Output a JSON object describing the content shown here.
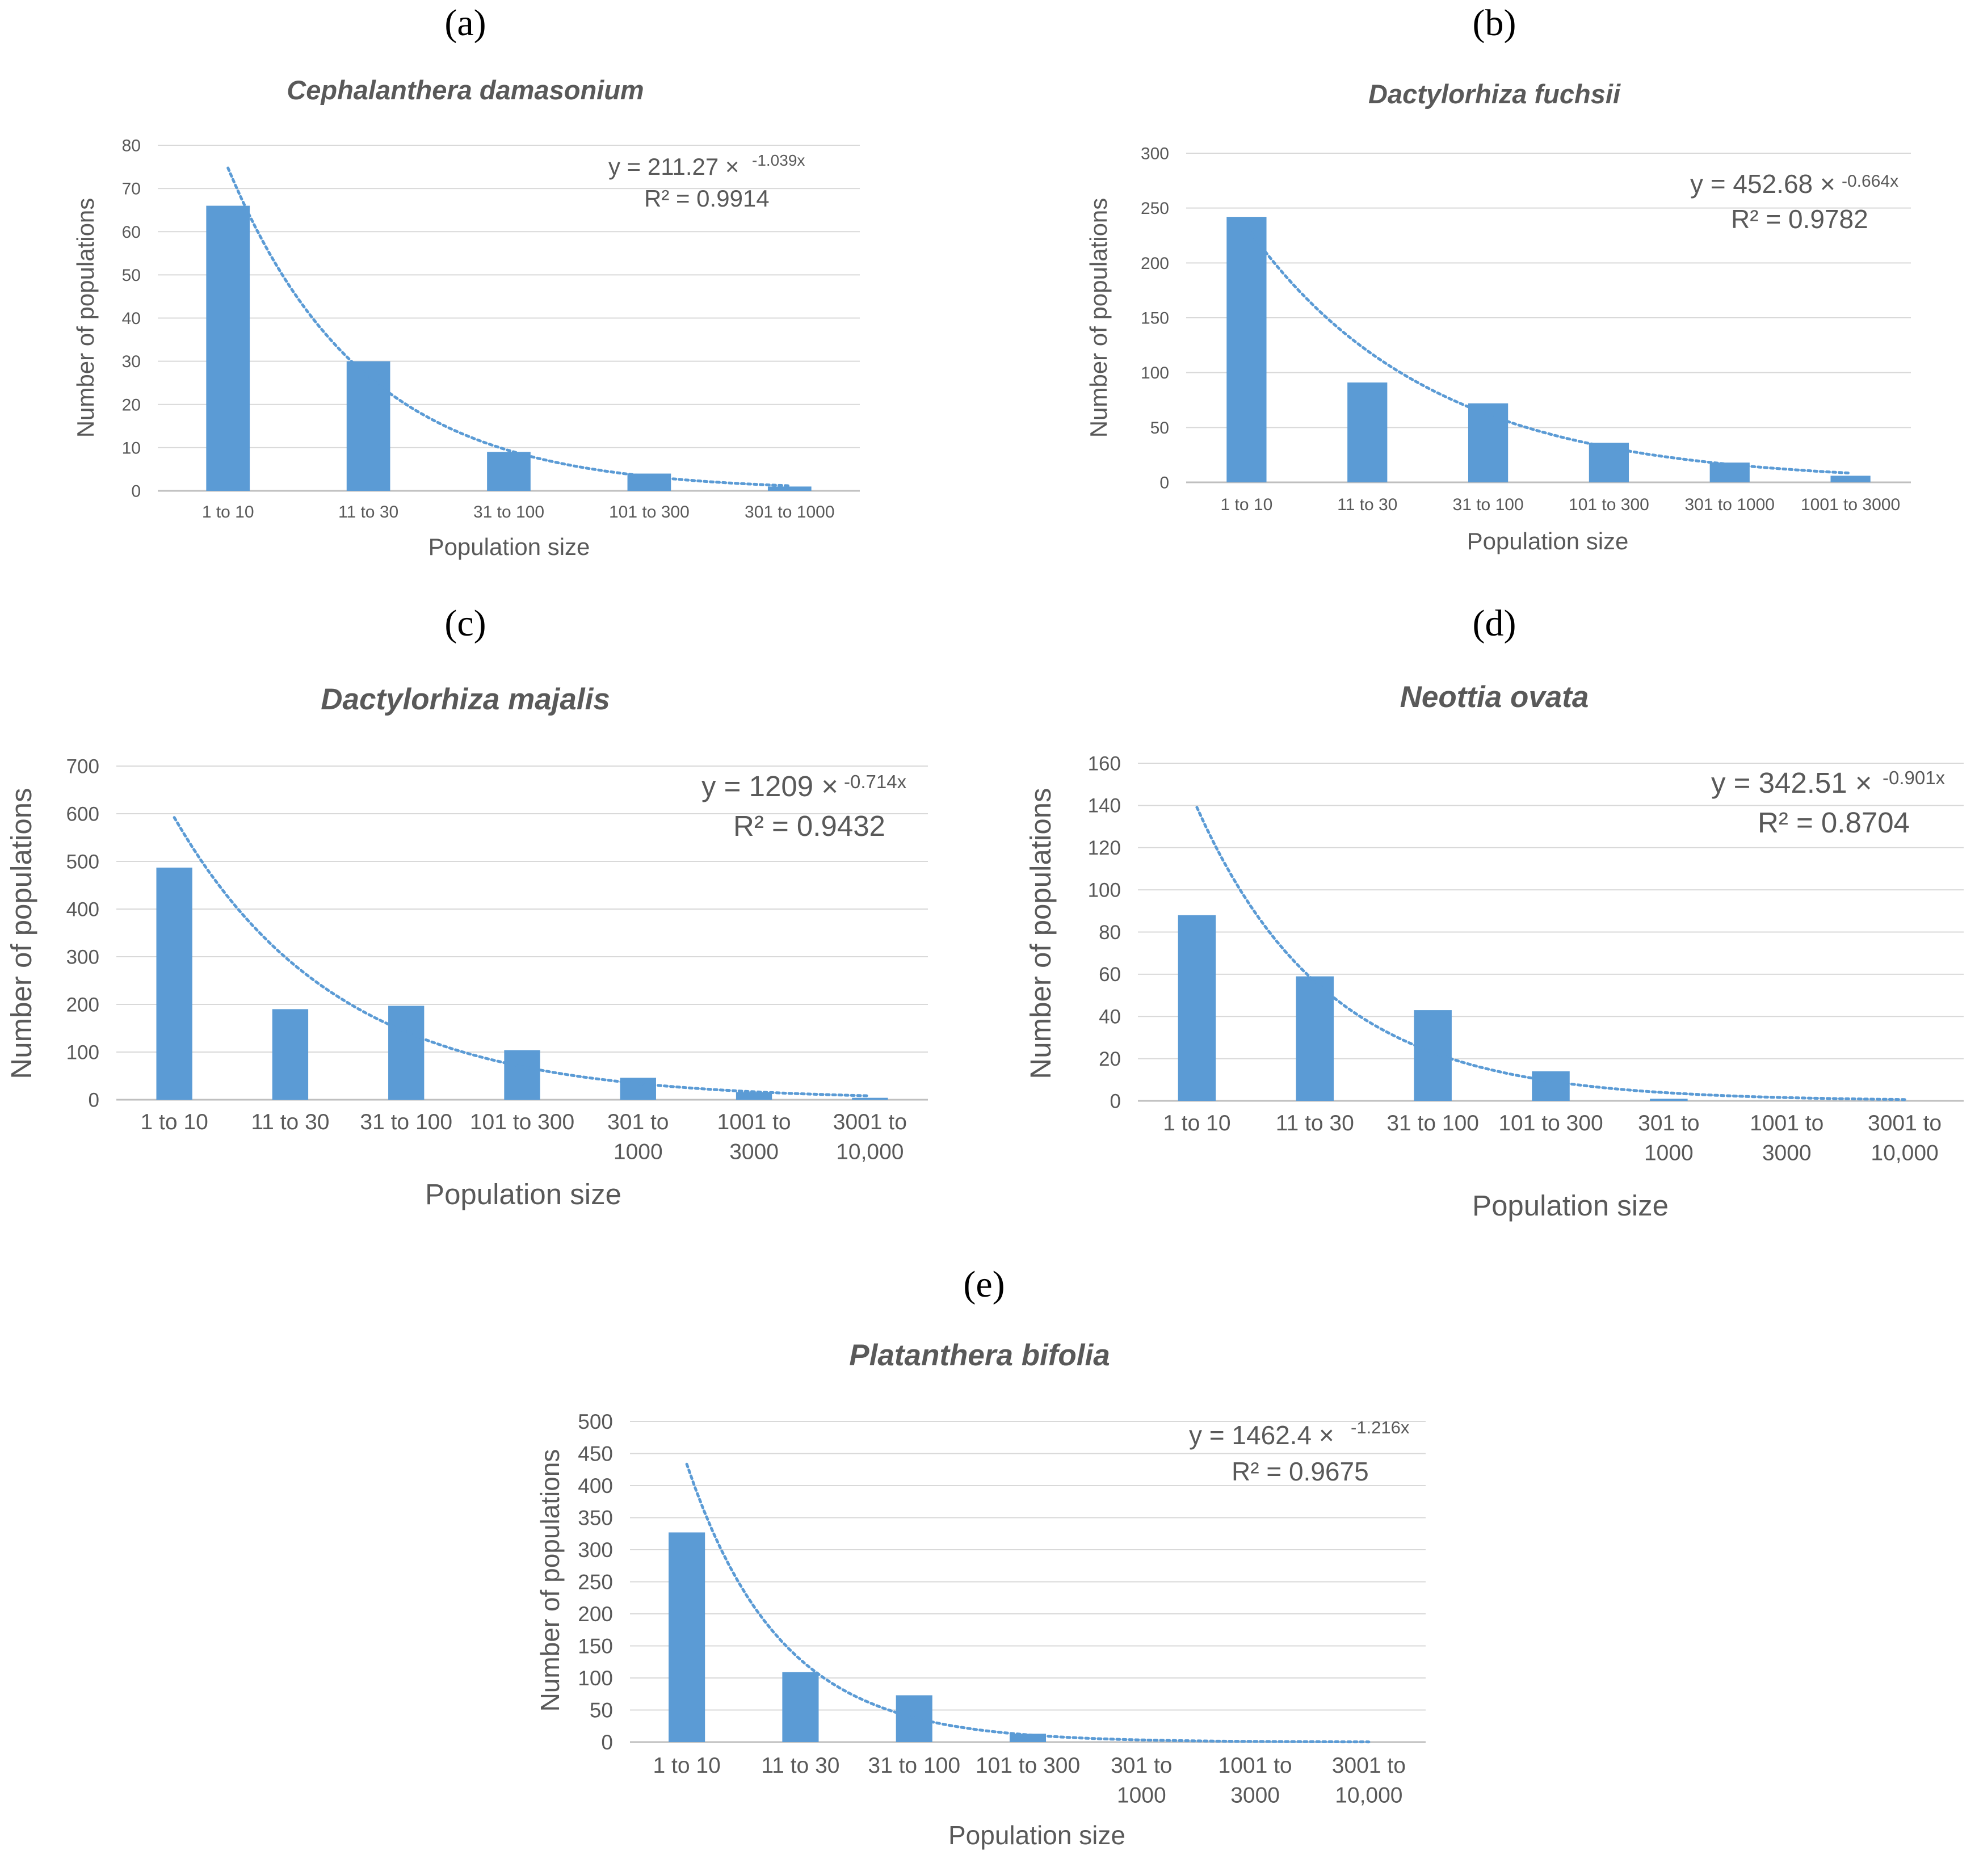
{
  "chart_data": [
    {
      "type": "bar",
      "panel": "(a)",
      "title": "Cephalanthera damasonium",
      "xlabel": "Population size",
      "ylabel": "Number of populations",
      "categories": [
        "1 to 10",
        "11 to 30",
        "31 to 100",
        "101 to 300",
        "301 to 1000"
      ],
      "values": [
        66,
        30,
        9,
        4,
        1
      ],
      "ylim": [
        0,
        80
      ],
      "yticks": [
        "0",
        "10",
        "20",
        "30",
        "40",
        "50",
        "60",
        "70",
        "80"
      ],
      "grid": true,
      "bar_color": "#5B9BD5",
      "trendline": {
        "type": "exponential",
        "a": 211.27,
        "b": -1.039
      },
      "equation": {
        "lhs": "y = 211.27 ×",
        "exponent": "-1.039x",
        "r2": "R² = 0.9914"
      }
    },
    {
      "type": "bar",
      "panel": "(b)",
      "title": "Dactylorhiza fuchsii",
      "xlabel": "Population size",
      "ylabel": "Number of populations",
      "categories": [
        "1 to 10",
        "11 to 30",
        "31 to 100",
        "101 to 300",
        "301 to 1000",
        "1001 to 3000"
      ],
      "values": [
        242,
        91,
        72,
        36,
        18,
        6
      ],
      "ylim": [
        0,
        300
      ],
      "yticks": [
        "0",
        "50",
        "100",
        "150",
        "200",
        "250",
        "300"
      ],
      "grid": true,
      "bar_color": "#5B9BD5",
      "trendline": {
        "type": "exponential",
        "a": 452.68,
        "b": -0.664
      },
      "equation": {
        "lhs": "y = 452.68 ×",
        "exponent": "-0.664x",
        "r2": "R² = 0.9782"
      }
    },
    {
      "type": "bar",
      "panel": "(c)",
      "title": "Dactylorhiza majalis",
      "xlabel": "Population size",
      "ylabel": "Number of populations",
      "categories": [
        [
          "1 to 10"
        ],
        [
          "11 to 30"
        ],
        [
          "31 to 100"
        ],
        [
          "101 to 300"
        ],
        [
          "301 to",
          "1000"
        ],
        [
          "1001 to",
          "3000"
        ],
        [
          "3001 to",
          "10,000"
        ]
      ],
      "values": [
        487,
        190,
        197,
        104,
        46,
        16,
        4
      ],
      "ylim": [
        0,
        700
      ],
      "yticks": [
        "0",
        "100",
        "200",
        "300",
        "400",
        "500",
        "600",
        "700"
      ],
      "grid": true,
      "bar_color": "#5B9BD5",
      "trendline": {
        "type": "exponential",
        "a": 1209,
        "b": -0.714
      },
      "equation": {
        "lhs": "y = 1209 ×",
        "exponent": "-0.714x",
        "r2": "R² = 0.9432"
      }
    },
    {
      "type": "bar",
      "panel": "(d)",
      "title": "Neottia ovata",
      "xlabel": "Population size",
      "ylabel": "Number of populations",
      "categories": [
        [
          "1 to 10"
        ],
        [
          "11 to 30"
        ],
        [
          "31 to 100"
        ],
        [
          "101 to 300"
        ],
        [
          "301 to",
          "1000"
        ],
        [
          "1001 to",
          "3000"
        ],
        [
          "3001 to",
          "10,000"
        ]
      ],
      "values": [
        88,
        59,
        43,
        14,
        1,
        0,
        0
      ],
      "ylim": [
        0,
        160
      ],
      "yticks": [
        "0",
        "20",
        "40",
        "60",
        "80",
        "100",
        "120",
        "140",
        "160"
      ],
      "grid": true,
      "bar_color": "#5B9BD5",
      "trendline": {
        "type": "exponential",
        "a": 342.51,
        "b": -0.901
      },
      "equation": {
        "lhs": "y = 342.51 ×",
        "exponent": "-0.901x",
        "r2": "R² = 0.8704"
      }
    },
    {
      "type": "bar",
      "panel": "(e)",
      "title": "Platanthera bifolia",
      "xlabel": "Population size",
      "ylabel": "Number of populations",
      "categories": [
        [
          "1 to 10"
        ],
        [
          "11 to 30"
        ],
        [
          "31 to 100"
        ],
        [
          "101 to 300"
        ],
        [
          "301 to",
          "1000"
        ],
        [
          "1001 to",
          "3000"
        ],
        [
          "3001 to",
          "10,000"
        ]
      ],
      "values": [
        327,
        109,
        73,
        13,
        0,
        0,
        0
      ],
      "ylim": [
        0,
        500
      ],
      "yticks": [
        "0",
        "50",
        "100",
        "150",
        "200",
        "250",
        "300",
        "350",
        "400",
        "450",
        "500"
      ],
      "grid": true,
      "bar_color": "#5B9BD5",
      "trendline": {
        "type": "exponential",
        "a": 1462.4,
        "b": -1.216
      },
      "equation": {
        "lhs": "y = 1462.4 ×",
        "exponent": "-1.216x",
        "r2": "R² = 0.9675"
      }
    }
  ]
}
